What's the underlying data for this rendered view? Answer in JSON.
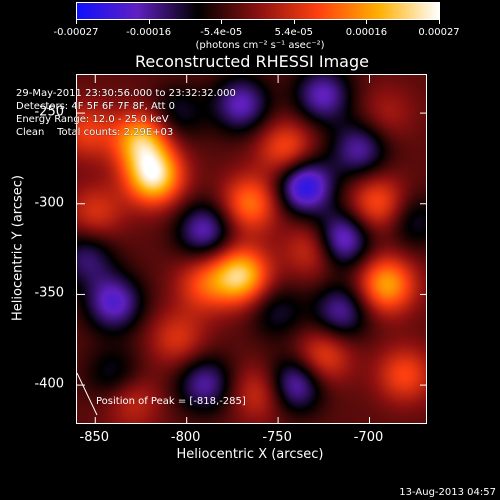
{
  "colorbar": {
    "tick_labels": [
      "-0.00027",
      "-0.00016",
      "-5.4e-05",
      "5.4e-05",
      "0.00016",
      "0.00027"
    ],
    "units": "(photons cm⁻² s⁻¹ asec⁻²)",
    "colors": [
      "#1010ff",
      "#6020c0",
      "#000000",
      "#8a1010",
      "#ff4010",
      "#ffb000",
      "#ffffff"
    ]
  },
  "title": "Reconstructed RHESSI Image",
  "info": {
    "time_range": "29-May-2011 23:30:56.000 to 23:32:32.000",
    "detectors": "Detectors: 4F 5F 6F 7F 8F, Att 0",
    "energy": "Energy Range: 12.0 - 25.0 keV",
    "clean": "Clean    Total counts: 2.29E+03"
  },
  "peak_label": "Position of Peak = [-818,-285]",
  "footer_date": "13-Aug-2013 04:57",
  "chart_data": {
    "type": "heatmap",
    "title": "Reconstructed RHESSI Image",
    "xlabel": "Heliocentric X (arcsec)",
    "ylabel": "Heliocentric Y (arcsec)",
    "xlim": [
      -860,
      -668
    ],
    "ylim": [
      -422,
      -229
    ],
    "x_ticks": [
      -850,
      -800,
      -750,
      -700
    ],
    "y_ticks": [
      -250,
      -300,
      -350,
      -400
    ],
    "x_tick_labels": [
      "-850",
      "-800",
      "-750",
      "-700"
    ],
    "y_tick_labels": [
      "-250",
      "-300",
      "-350",
      "-400"
    ],
    "value_range": [
      -0.00027,
      0.00027
    ],
    "peak": {
      "x": -818,
      "y": -285
    },
    "blobs": [
      {
        "x": -818,
        "y": -285,
        "v": 1.0
      },
      {
        "x": -825,
        "y": -265,
        "v": 0.8
      },
      {
        "x": -770,
        "y": -340,
        "v": 0.9
      },
      {
        "x": -765,
        "y": -300,
        "v": 0.6
      },
      {
        "x": -745,
        "y": -270,
        "v": 0.5
      },
      {
        "x": -790,
        "y": -345,
        "v": 0.45
      },
      {
        "x": -805,
        "y": -375,
        "v": 0.35
      },
      {
        "x": -850,
        "y": -305,
        "v": 0.35
      },
      {
        "x": -855,
        "y": -260,
        "v": 0.4
      },
      {
        "x": -830,
        "y": -410,
        "v": 0.3
      },
      {
        "x": -690,
        "y": -345,
        "v": 0.75
      },
      {
        "x": -695,
        "y": -300,
        "v": 0.5
      },
      {
        "x": -725,
        "y": -385,
        "v": 0.45
      },
      {
        "x": -760,
        "y": -405,
        "v": 0.35
      },
      {
        "x": -730,
        "y": -325,
        "v": 0.4
      },
      {
        "x": -680,
        "y": -395,
        "v": 0.45
      },
      {
        "x": -690,
        "y": -250,
        "v": 0.2
      },
      {
        "x": -840,
        "y": -355,
        "v": -0.6
      },
      {
        "x": -790,
        "y": -315,
        "v": -0.55
      },
      {
        "x": -770,
        "y": -245,
        "v": -0.55
      },
      {
        "x": -725,
        "y": -240,
        "v": -0.55
      },
      {
        "x": -735,
        "y": -290,
        "v": -0.8
      },
      {
        "x": -715,
        "y": -320,
        "v": -0.7
      },
      {
        "x": -715,
        "y": -360,
        "v": -0.5
      },
      {
        "x": -740,
        "y": -400,
        "v": -0.6
      },
      {
        "x": -790,
        "y": -400,
        "v": -0.5
      },
      {
        "x": -840,
        "y": -395,
        "v": -0.3
      },
      {
        "x": -705,
        "y": -270,
        "v": -0.5
      },
      {
        "x": -675,
        "y": -310,
        "v": -0.3
      },
      {
        "x": -855,
        "y": -330,
        "v": -0.4
      },
      {
        "x": -805,
        "y": -250,
        "v": -0.3
      },
      {
        "x": -750,
        "y": -360,
        "v": -0.3
      }
    ]
  }
}
